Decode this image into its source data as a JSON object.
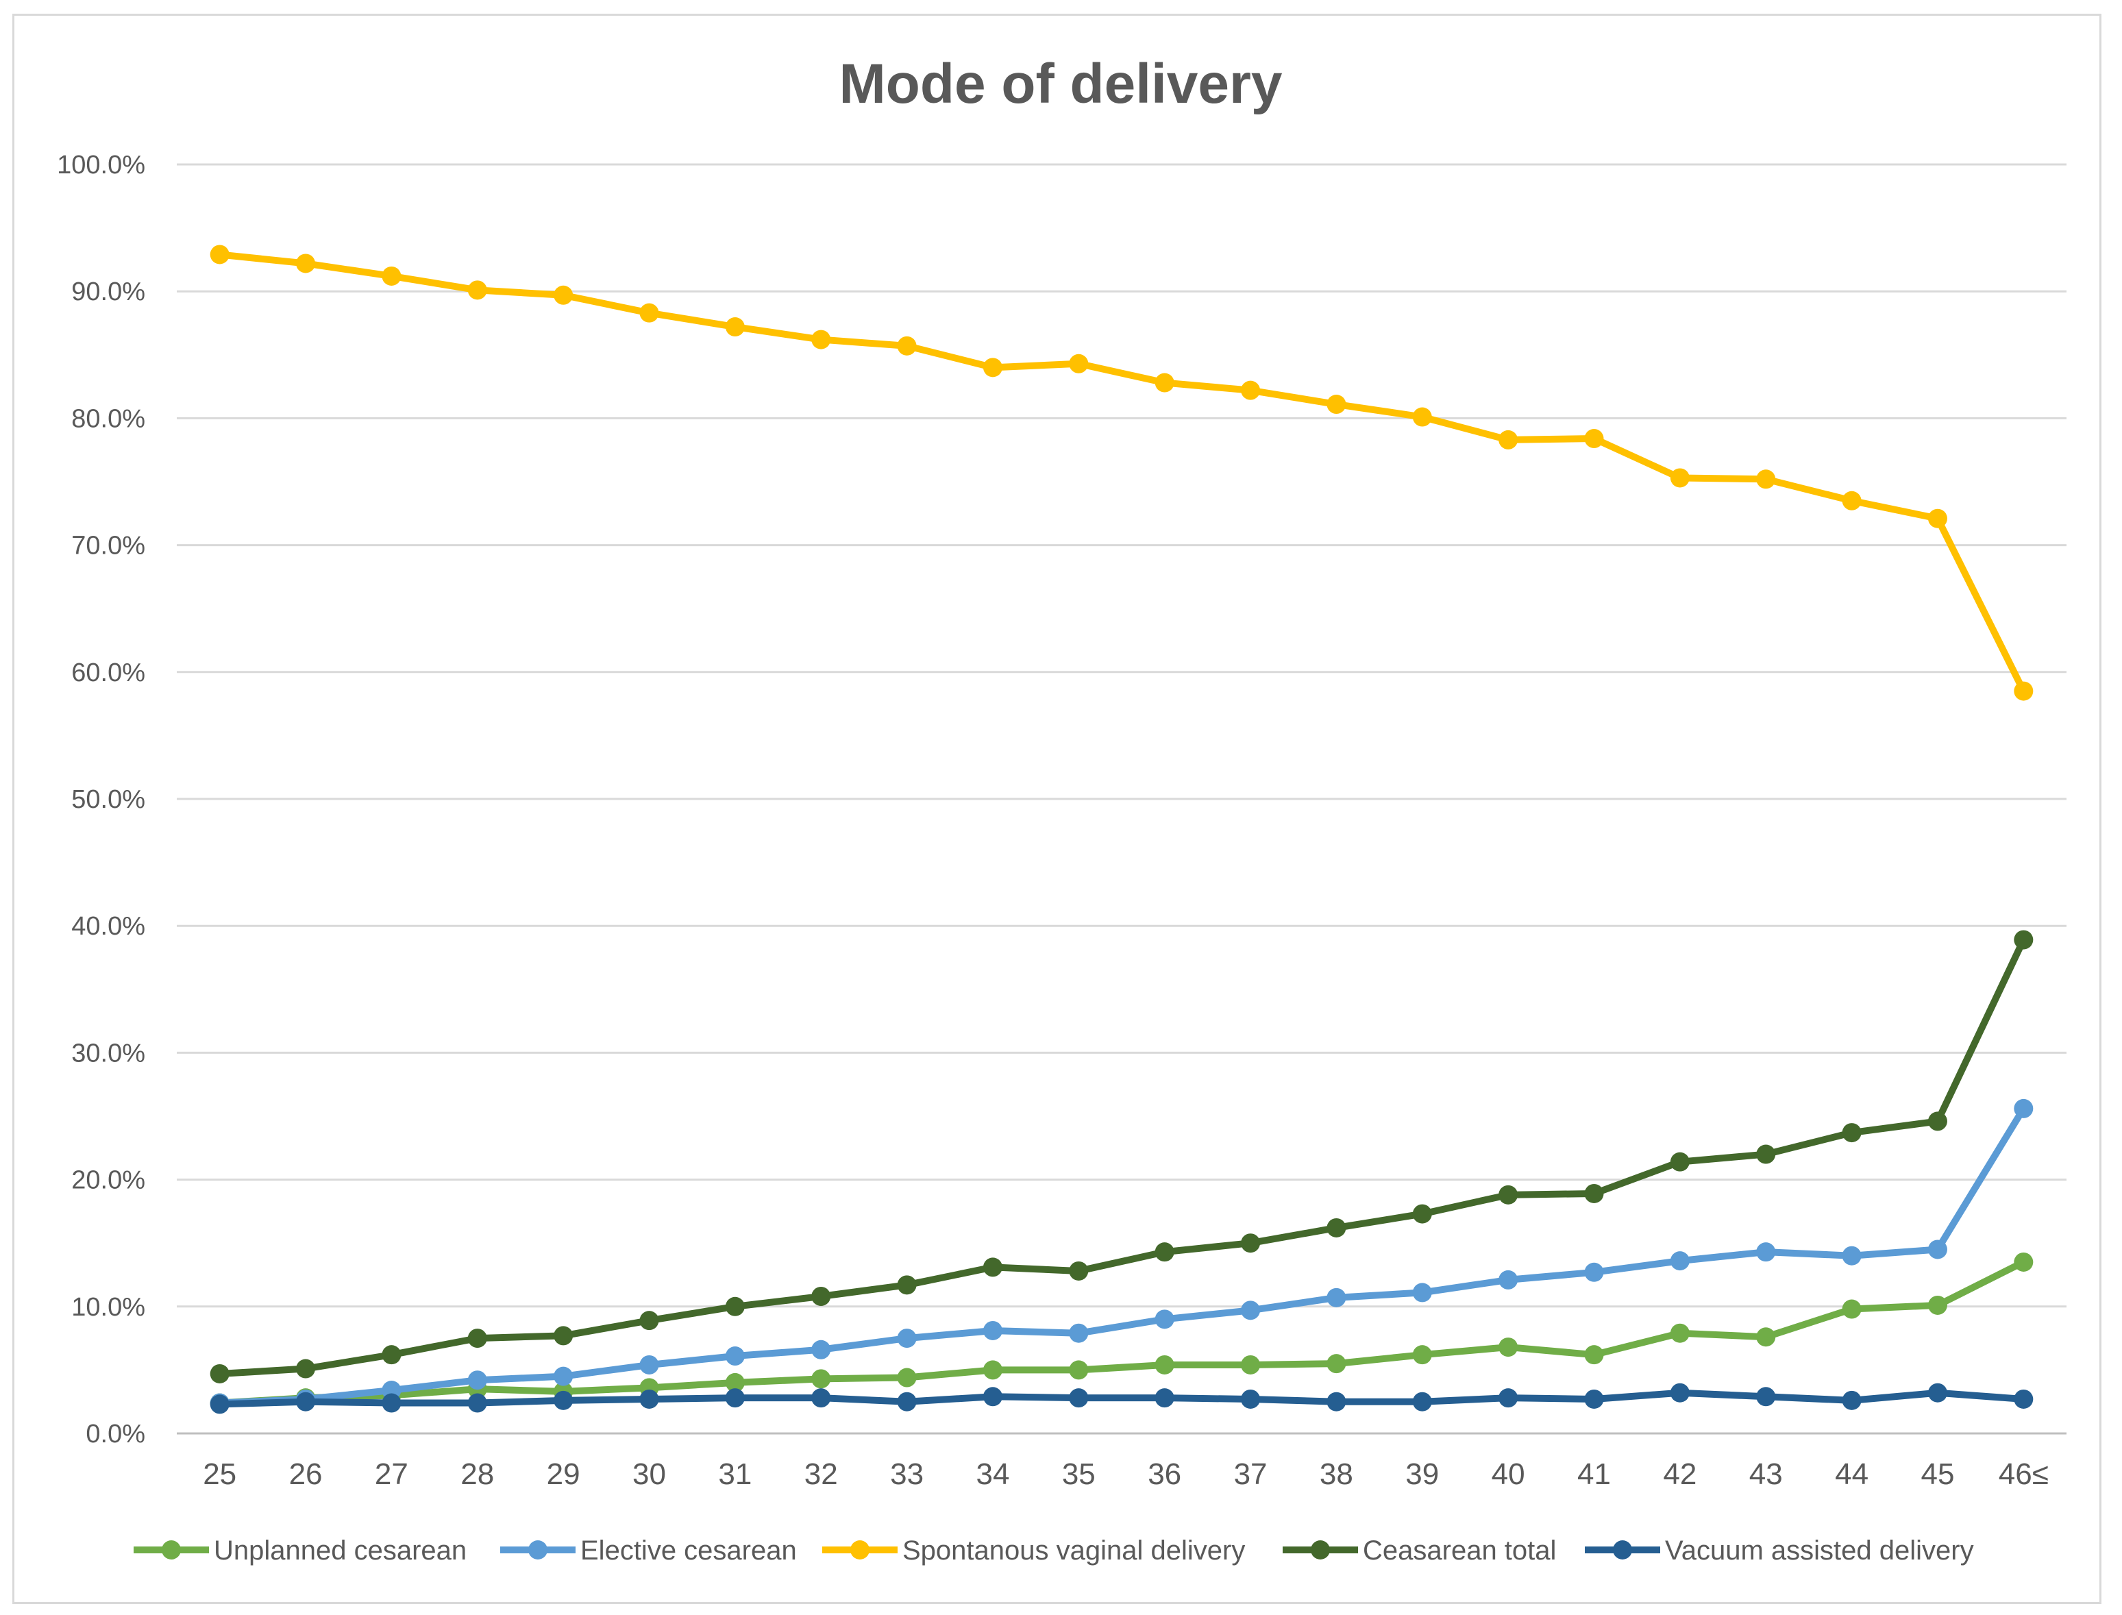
{
  "chart_data": {
    "type": "line",
    "title": "Mode of delivery",
    "xlabel": "",
    "ylabel": "",
    "categories": [
      "25",
      "26",
      "27",
      "28",
      "29",
      "30",
      "31",
      "32",
      "33",
      "34",
      "35",
      "36",
      "37",
      "38",
      "39",
      "40",
      "41",
      "42",
      "43",
      "44",
      "45",
      "46≤"
    ],
    "ylim": [
      0,
      100
    ],
    "yticks": [
      "0.0%",
      "10.0%",
      "20.0%",
      "30.0%",
      "40.0%",
      "50.0%",
      "60.0%",
      "70.0%",
      "80.0%",
      "90.0%",
      "100.0%"
    ],
    "grid": true,
    "legend_position": "bottom",
    "series": [
      {
        "name": "Unplanned cesarean",
        "color": "#70ad47",
        "values": [
          2.4,
          2.8,
          3.0,
          3.5,
          3.3,
          3.6,
          4.0,
          4.3,
          4.4,
          5.0,
          5.0,
          5.4,
          5.4,
          5.5,
          6.2,
          6.8,
          6.2,
          7.9,
          7.6,
          9.8,
          10.1,
          13.5
        ]
      },
      {
        "name": "Elective cesarean",
        "color": "#5b9bd5",
        "values": [
          2.4,
          2.7,
          3.4,
          4.2,
          4.5,
          5.4,
          6.1,
          6.6,
          7.5,
          8.1,
          7.9,
          9.0,
          9.7,
          10.7,
          11.1,
          12.1,
          12.7,
          13.6,
          14.3,
          14.0,
          14.5,
          25.6
        ]
      },
      {
        "name": "Spontanous vaginal delivery",
        "color": "#ffc000",
        "values": [
          92.9,
          92.2,
          91.2,
          90.1,
          89.7,
          88.3,
          87.2,
          86.2,
          85.7,
          84.0,
          84.3,
          82.8,
          82.2,
          81.1,
          80.1,
          78.3,
          78.4,
          75.3,
          75.2,
          73.5,
          72.1,
          58.5
        ]
      },
      {
        "name": "Ceasarean total",
        "color": "#43682b",
        "values": [
          4.7,
          5.1,
          6.2,
          7.5,
          7.7,
          8.9,
          10.0,
          10.8,
          11.7,
          13.1,
          12.8,
          14.3,
          15.0,
          16.2,
          17.3,
          18.8,
          18.9,
          21.4,
          22.0,
          23.7,
          24.6,
          38.9
        ]
      },
      {
        "name": "Vacuum assisted delivery",
        "color": "#255e91",
        "values": [
          2.3,
          2.5,
          2.4,
          2.4,
          2.6,
          2.7,
          2.8,
          2.8,
          2.5,
          2.9,
          2.8,
          2.8,
          2.7,
          2.5,
          2.5,
          2.8,
          2.7,
          3.2,
          2.9,
          2.6,
          3.2,
          2.7
        ]
      }
    ]
  }
}
